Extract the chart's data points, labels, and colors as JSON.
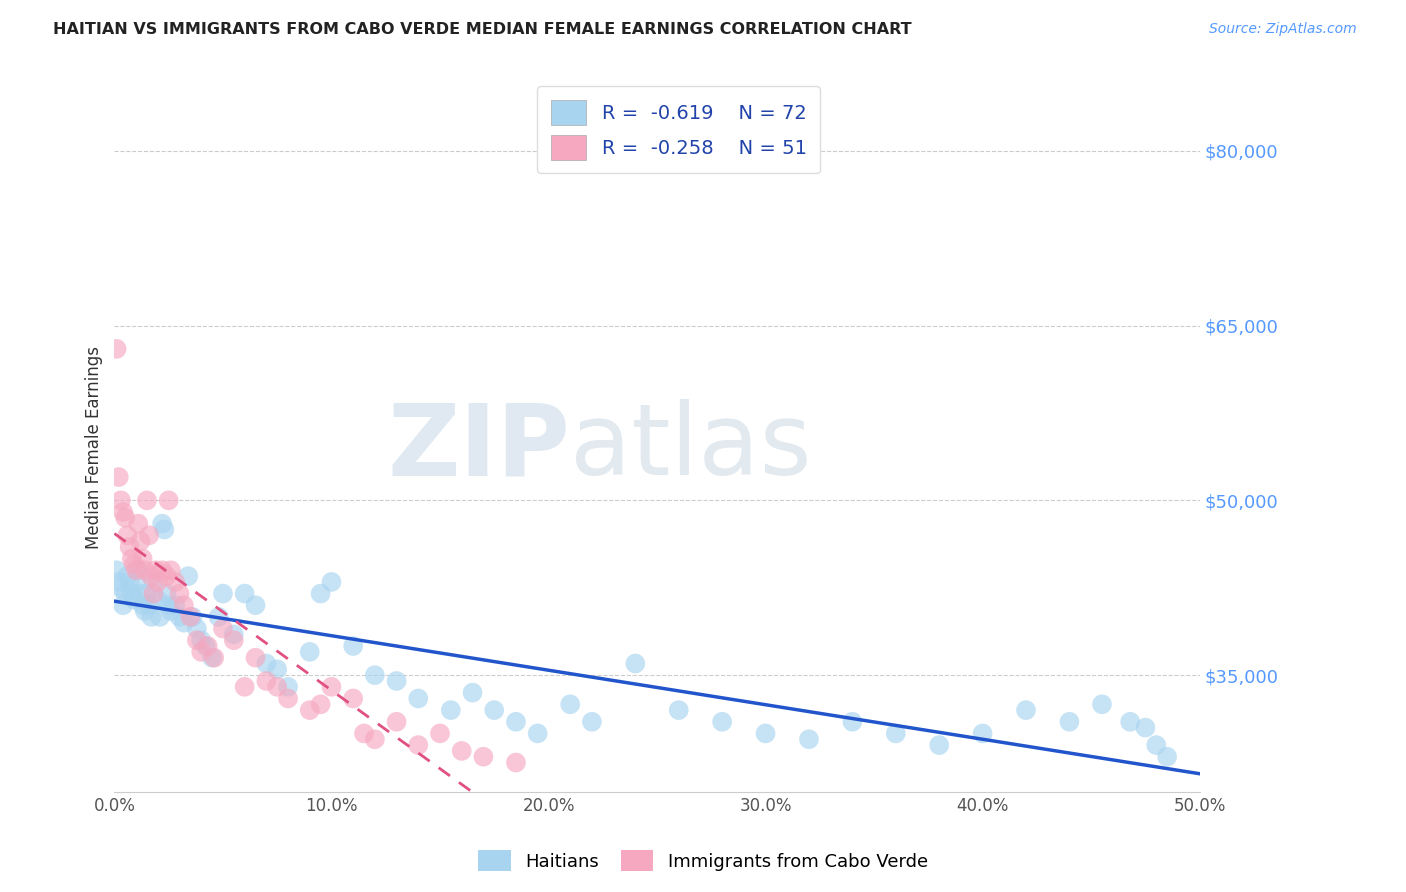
{
  "title": "HAITIAN VS IMMIGRANTS FROM CABO VERDE MEDIAN FEMALE EARNINGS CORRELATION CHART",
  "source": "Source: ZipAtlas.com",
  "ylabel": "Median Female Earnings",
  "xlim": [
    0.0,
    0.5
  ],
  "ylim": [
    25000,
    84000
  ],
  "right_yticks": [
    35000,
    50000,
    65000,
    80000
  ],
  "right_ytick_labels": [
    "$35,000",
    "$50,000",
    "$65,000",
    "$80,000"
  ],
  "color_blue": "#A8D4F0",
  "color_pink": "#F5A8C0",
  "line_blue": "#2255CC",
  "line_pink": "#E05080",
  "watermark_zip": "ZIP",
  "watermark_atlas": "atlas",
  "haitians_x": [
    0.001,
    0.002,
    0.003,
    0.004,
    0.005,
    0.006,
    0.007,
    0.008,
    0.009,
    0.01,
    0.011,
    0.012,
    0.013,
    0.014,
    0.015,
    0.016,
    0.017,
    0.018,
    0.02,
    0.021,
    0.022,
    0.023,
    0.024,
    0.025,
    0.026,
    0.028,
    0.03,
    0.032,
    0.034,
    0.036,
    0.038,
    0.04,
    0.042,
    0.045,
    0.048,
    0.05,
    0.055,
    0.06,
    0.065,
    0.07,
    0.075,
    0.08,
    0.09,
    0.095,
    0.1,
    0.11,
    0.12,
    0.13,
    0.14,
    0.155,
    0.165,
    0.175,
    0.185,
    0.195,
    0.21,
    0.22,
    0.24,
    0.26,
    0.28,
    0.3,
    0.32,
    0.34,
    0.36,
    0.38,
    0.4,
    0.42,
    0.44,
    0.455,
    0.468,
    0.475,
    0.48,
    0.485
  ],
  "haitians_y": [
    44000,
    43000,
    42500,
    41000,
    42000,
    43500,
    43000,
    42000,
    41500,
    43000,
    44000,
    42000,
    41000,
    40500,
    42000,
    41000,
    40000,
    43000,
    41500,
    40000,
    48000,
    47500,
    42000,
    41000,
    40500,
    41000,
    40000,
    39500,
    43500,
    40000,
    39000,
    38000,
    37500,
    36500,
    40000,
    42000,
    38500,
    42000,
    41000,
    36000,
    35500,
    34000,
    37000,
    42000,
    43000,
    37500,
    35000,
    34500,
    33000,
    32000,
    33500,
    32000,
    31000,
    30000,
    32500,
    31000,
    36000,
    32000,
    31000,
    30000,
    29500,
    31000,
    30000,
    29000,
    30000,
    32000,
    31000,
    32500,
    31000,
    30500,
    29000,
    28000
  ],
  "caboverde_x": [
    0.001,
    0.002,
    0.003,
    0.004,
    0.005,
    0.006,
    0.007,
    0.008,
    0.009,
    0.01,
    0.011,
    0.012,
    0.013,
    0.014,
    0.015,
    0.016,
    0.017,
    0.018,
    0.019,
    0.02,
    0.022,
    0.024,
    0.025,
    0.026,
    0.028,
    0.03,
    0.032,
    0.035,
    0.038,
    0.04,
    0.043,
    0.046,
    0.05,
    0.055,
    0.06,
    0.065,
    0.07,
    0.075,
    0.08,
    0.09,
    0.095,
    0.1,
    0.11,
    0.115,
    0.12,
    0.13,
    0.14,
    0.15,
    0.16,
    0.17,
    0.185
  ],
  "caboverde_y": [
    63000,
    52000,
    50000,
    49000,
    48500,
    47000,
    46000,
    45000,
    44500,
    44000,
    48000,
    46500,
    45000,
    44000,
    50000,
    47000,
    43500,
    42000,
    44000,
    43000,
    44000,
    43500,
    50000,
    44000,
    43000,
    42000,
    41000,
    40000,
    38000,
    37000,
    37500,
    36500,
    39000,
    38000,
    34000,
    36500,
    34500,
    34000,
    33000,
    32000,
    32500,
    34000,
    33000,
    30000,
    29500,
    31000,
    29000,
    30000,
    28500,
    28000,
    27500
  ]
}
